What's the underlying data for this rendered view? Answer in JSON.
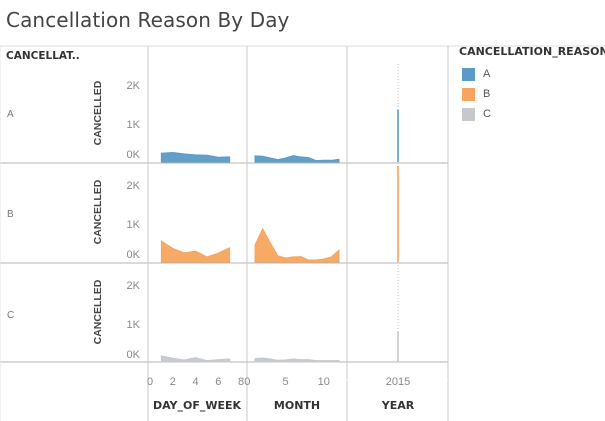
{
  "title": "Cancellation Reason By Day",
  "row_header": "CANCELLAT..",
  "legend": {
    "title": "CANCELLATION_REASON",
    "items": [
      {
        "label": "A",
        "color": "#5b9bc6"
      },
      {
        "label": "B",
        "color": "#f7a55e"
      },
      {
        "label": "C",
        "color": "#c5c9cd"
      }
    ]
  },
  "chart_data": {
    "type": "area",
    "y_axis_label": "CANCELLED",
    "y_ticks": [
      "0K",
      "1K",
      "2K"
    ],
    "ylim": [
      0,
      2500
    ],
    "rows": [
      "A",
      "B",
      "C"
    ],
    "panels": [
      {
        "name": "DAY_OF_WEEK",
        "x_ticks": [
          0,
          2,
          4,
          6,
          8
        ],
        "xlim": [
          0,
          8
        ],
        "series": {
          "A": {
            "x": [
              1,
              2,
              3,
              4,
              5,
              6,
              7
            ],
            "y": [
              260,
              280,
              240,
              210,
              200,
              140,
              150
            ]
          },
          "B": {
            "x": [
              1,
              2,
              3,
              4,
              5,
              6,
              7
            ],
            "y": [
              620,
              400,
              270,
              320,
              150,
              260,
              420
            ]
          },
          "C": {
            "x": [
              1,
              2,
              3,
              4,
              5,
              6,
              7
            ],
            "y": [
              180,
              110,
              60,
              130,
              40,
              70,
              90
            ]
          }
        }
      },
      {
        "name": "MONTH",
        "x_ticks": [
          0,
          5,
          10
        ],
        "xlim": [
          0,
          13
        ],
        "series": {
          "A": {
            "x": [
              1,
              2,
              3,
              4,
              5,
              6,
              7,
              8,
              9,
              10,
              11,
              12
            ],
            "y": [
              180,
              170,
              120,
              70,
              120,
              190,
              150,
              130,
              40,
              50,
              50,
              80
            ]
          },
          "B": {
            "x": [
              1,
              2,
              3,
              4,
              5,
              6,
              7,
              8,
              9,
              10,
              11,
              12
            ],
            "y": [
              500,
              980,
              570,
              180,
              120,
              150,
              160,
              60,
              60,
              90,
              150,
              350
            ]
          },
          "C": {
            "x": [
              1,
              2,
              3,
              4,
              5,
              6,
              7,
              8,
              9,
              10,
              11,
              12
            ],
            "y": [
              100,
              120,
              90,
              50,
              60,
              90,
              70,
              70,
              40,
              40,
              40,
              40
            ]
          }
        }
      },
      {
        "name": "YEAR",
        "x_ticks": [
          2015
        ],
        "series": {
          "A": {
            "x": [
              2015
            ],
            "y": [
              1550
            ]
          },
          "B": {
            "x": [
              2015
            ],
            "y": [
              3100
            ]
          },
          "C": {
            "x": [
              2015
            ],
            "y": [
              900
            ]
          }
        }
      }
    ]
  }
}
